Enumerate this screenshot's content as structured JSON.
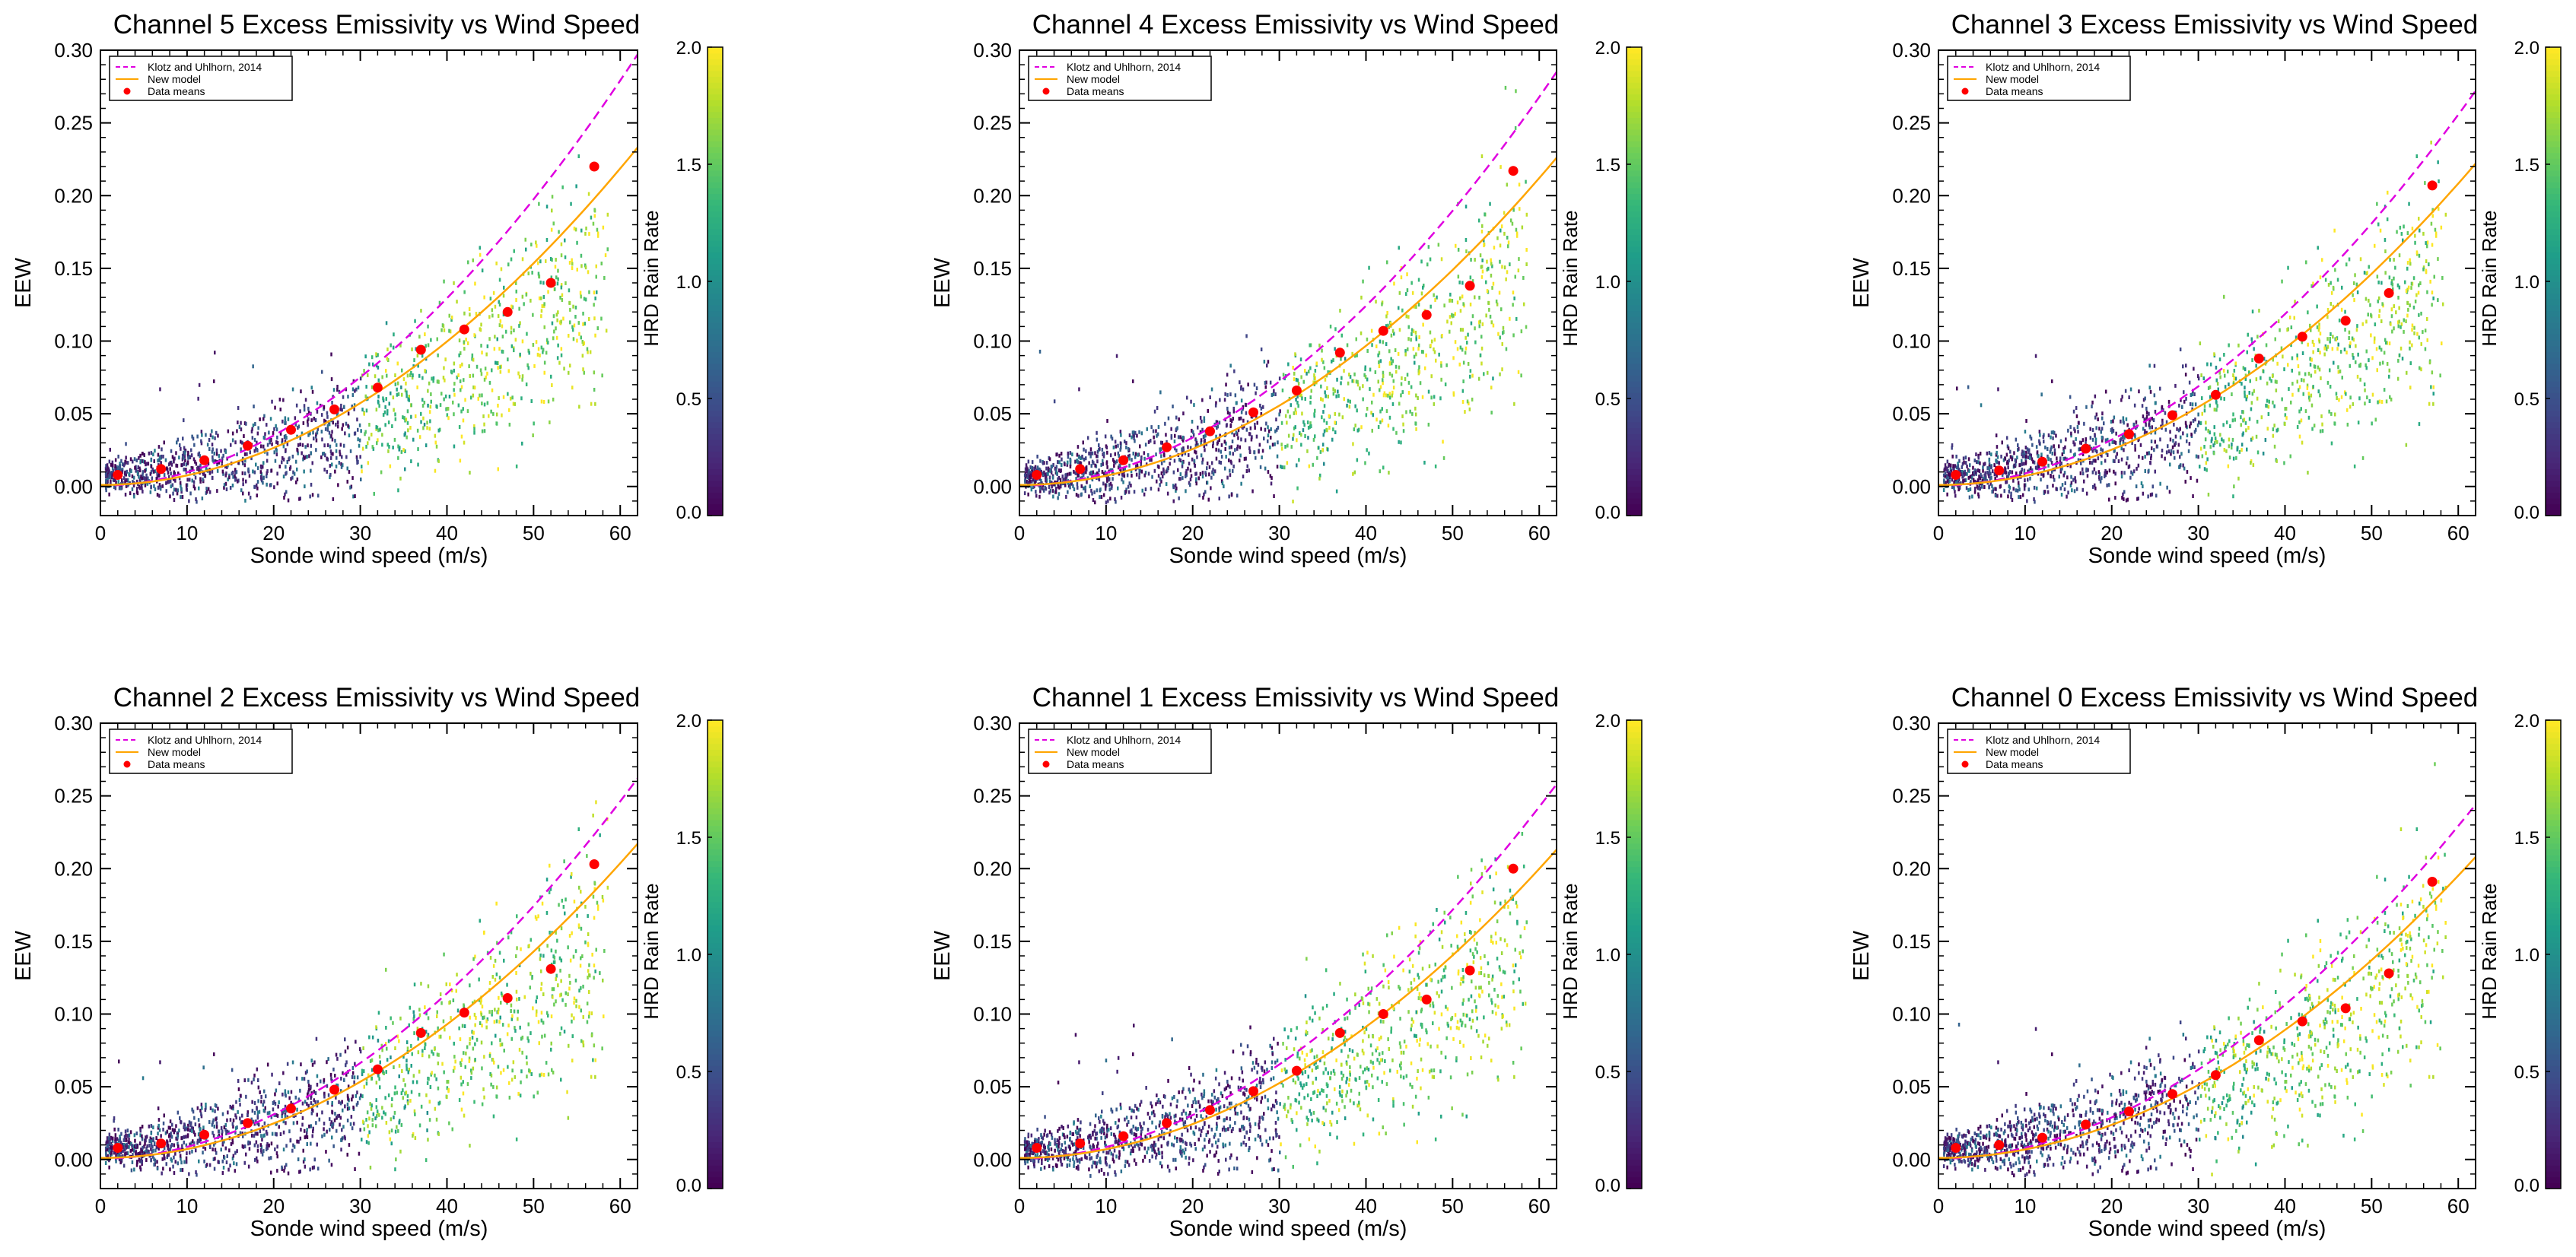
{
  "colors": {
    "klotz": "#e000e0",
    "new_model": "#ffa500",
    "means": "#ff0000",
    "axis": "#000000",
    "viridis": [
      "#440154",
      "#482878",
      "#3e4a89",
      "#31688e",
      "#26828e",
      "#1f9e89",
      "#35b779",
      "#6ece58",
      "#b5de2b",
      "#fde725"
    ]
  },
  "chart_data": [
    {
      "type": "scatter",
      "title": "Channel 5 Excess Emissivity vs Wind Speed",
      "xlabel": "Sonde wind speed (m/s)",
      "ylabel": "EEW",
      "xlim": [
        0,
        62
      ],
      "ylim": [
        -0.02,
        0.3
      ],
      "xticks": [
        "0",
        "10",
        "20",
        "30",
        "40",
        "50",
        "60"
      ],
      "yticks": [
        "0.00",
        "0.05",
        "0.10",
        "0.15",
        "0.20",
        "0.25",
        "0.30"
      ],
      "colorbar": {
        "label": "HRD Rain Rate",
        "range": [
          0.0,
          2.0
        ],
        "ticks": [
          "0.0",
          "0.5",
          "1.0",
          "1.5",
          "2.0"
        ]
      },
      "legend": {
        "location": "top-left",
        "entries": [
          "Klotz and Uhlhorn, 2014",
          "New model",
          "Data means"
        ]
      },
      "klotz_endpoint": 0.297,
      "model_endpoint": 0.233,
      "data_means": {
        "x": [
          2,
          7,
          12,
          17,
          22,
          27,
          32,
          37,
          42,
          47,
          52,
          57
        ],
        "y": [
          0.008,
          0.012,
          0.018,
          0.028,
          0.039,
          0.053,
          0.068,
          0.094,
          0.108,
          0.12,
          0.14,
          0.22
        ]
      }
    },
    {
      "type": "scatter",
      "title": "Channel 4 Excess Emissivity vs Wind Speed",
      "xlabel": "Sonde wind speed (m/s)",
      "ylabel": "EEW",
      "xlim": [
        0,
        62
      ],
      "ylim": [
        -0.02,
        0.3
      ],
      "xticks": [
        "0",
        "10",
        "20",
        "30",
        "40",
        "50",
        "60"
      ],
      "yticks": [
        "0.00",
        "0.05",
        "0.10",
        "0.15",
        "0.20",
        "0.25",
        "0.30"
      ],
      "colorbar": {
        "label": "HRD Rain Rate",
        "range": [
          0.0,
          2.0
        ],
        "ticks": [
          "0.0",
          "0.5",
          "1.0",
          "1.5",
          "2.0"
        ]
      },
      "legend": {
        "location": "top-left",
        "entries": [
          "Klotz and Uhlhorn, 2014",
          "New model",
          "Data means"
        ]
      },
      "klotz_endpoint": 0.285,
      "model_endpoint": 0.226,
      "data_means": {
        "x": [
          2,
          7,
          12,
          17,
          22,
          27,
          32,
          37,
          42,
          47,
          52,
          57
        ],
        "y": [
          0.008,
          0.012,
          0.018,
          0.027,
          0.038,
          0.051,
          0.066,
          0.092,
          0.107,
          0.118,
          0.138,
          0.217
        ]
      }
    },
    {
      "type": "scatter",
      "title": "Channel 3 Excess Emissivity vs Wind Speed",
      "xlabel": "Sonde wind speed (m/s)",
      "ylabel": "EEW",
      "xlim": [
        0,
        62
      ],
      "ylim": [
        -0.02,
        0.3
      ],
      "xticks": [
        "0",
        "10",
        "20",
        "30",
        "40",
        "50",
        "60"
      ],
      "yticks": [
        "0.00",
        "0.05",
        "0.10",
        "0.15",
        "0.20",
        "0.25",
        "0.30"
      ],
      "colorbar": {
        "label": "HRD Rain Rate",
        "range": [
          0.0,
          2.0
        ],
        "ticks": [
          "0.0",
          "0.5",
          "1.0",
          "1.5",
          "2.0"
        ]
      },
      "legend": {
        "location": "top-left",
        "entries": [
          "Klotz and Uhlhorn, 2014",
          "New model",
          "Data means"
        ]
      },
      "klotz_endpoint": 0.272,
      "model_endpoint": 0.222,
      "data_means": {
        "x": [
          2,
          7,
          12,
          17,
          22,
          27,
          32,
          37,
          42,
          47,
          52,
          57
        ],
        "y": [
          0.008,
          0.011,
          0.017,
          0.026,
          0.036,
          0.049,
          0.063,
          0.088,
          0.103,
          0.114,
          0.133,
          0.207
        ]
      }
    },
    {
      "type": "scatter",
      "title": "Channel 2 Excess Emissivity vs Wind Speed",
      "xlabel": "Sonde wind speed (m/s)",
      "ylabel": "EEW",
      "xlim": [
        0,
        62
      ],
      "ylim": [
        -0.02,
        0.3
      ],
      "xticks": [
        "0",
        "10",
        "20",
        "30",
        "40",
        "50",
        "60"
      ],
      "yticks": [
        "0.00",
        "0.05",
        "0.10",
        "0.15",
        "0.20",
        "0.25",
        "0.30"
      ],
      "colorbar": {
        "label": "HRD Rain Rate",
        "range": [
          0.0,
          2.0
        ],
        "ticks": [
          "0.0",
          "0.5",
          "1.0",
          "1.5",
          "2.0"
        ]
      },
      "legend": {
        "location": "top-left",
        "entries": [
          "Klotz and Uhlhorn, 2014",
          "New model",
          "Data means"
        ]
      },
      "klotz_endpoint": 0.262,
      "model_endpoint": 0.217,
      "data_means": {
        "x": [
          2,
          7,
          12,
          17,
          22,
          27,
          32,
          37,
          42,
          47,
          52,
          57
        ],
        "y": [
          0.008,
          0.011,
          0.017,
          0.025,
          0.035,
          0.048,
          0.062,
          0.087,
          0.101,
          0.111,
          0.131,
          0.203
        ]
      }
    },
    {
      "type": "scatter",
      "title": "Channel 1 Excess Emissivity vs Wind Speed",
      "xlabel": "Sonde wind speed (m/s)",
      "ylabel": "EEW",
      "xlim": [
        0,
        62
      ],
      "ylim": [
        -0.02,
        0.3
      ],
      "xticks": [
        "0",
        "10",
        "20",
        "30",
        "40",
        "50",
        "60"
      ],
      "yticks": [
        "0.00",
        "0.05",
        "0.10",
        "0.15",
        "0.20",
        "0.25",
        "0.30"
      ],
      "colorbar": {
        "label": "HRD Rain Rate",
        "range": [
          0.0,
          2.0
        ],
        "ticks": [
          "0.0",
          "0.5",
          "1.0",
          "1.5",
          "2.0"
        ]
      },
      "legend": {
        "location": "top-left",
        "entries": [
          "Klotz and Uhlhorn, 2014",
          "New model",
          "Data means"
        ]
      },
      "klotz_endpoint": 0.258,
      "model_endpoint": 0.213,
      "data_means": {
        "x": [
          2,
          7,
          12,
          17,
          22,
          27,
          32,
          37,
          42,
          47,
          52,
          57
        ],
        "y": [
          0.008,
          0.011,
          0.016,
          0.025,
          0.034,
          0.047,
          0.061,
          0.087,
          0.1,
          0.11,
          0.13,
          0.2
        ]
      }
    },
    {
      "type": "scatter",
      "title": "Channel 0 Excess Emissivity vs Wind Speed",
      "xlabel": "Sonde wind speed (m/s)",
      "ylabel": "EEW",
      "xlim": [
        0,
        62
      ],
      "ylim": [
        -0.02,
        0.3
      ],
      "xticks": [
        "0",
        "10",
        "20",
        "30",
        "40",
        "50",
        "60"
      ],
      "yticks": [
        "0.00",
        "0.05",
        "0.10",
        "0.15",
        "0.20",
        "0.25",
        "0.30"
      ],
      "colorbar": {
        "label": "HRD Rain Rate",
        "range": [
          0.0,
          2.0
        ],
        "ticks": [
          "0.0",
          "0.5",
          "1.0",
          "1.5",
          "2.0"
        ]
      },
      "legend": {
        "location": "top-left",
        "entries": [
          "Klotz and Uhlhorn, 2014",
          "New model",
          "Data means"
        ]
      },
      "klotz_endpoint": 0.244,
      "model_endpoint": 0.208,
      "data_means": {
        "x": [
          2,
          7,
          12,
          17,
          22,
          27,
          32,
          37,
          42,
          47,
          52,
          57
        ],
        "y": [
          0.008,
          0.01,
          0.015,
          0.024,
          0.033,
          0.045,
          0.058,
          0.082,
          0.095,
          0.104,
          0.128,
          0.191
        ]
      }
    }
  ]
}
